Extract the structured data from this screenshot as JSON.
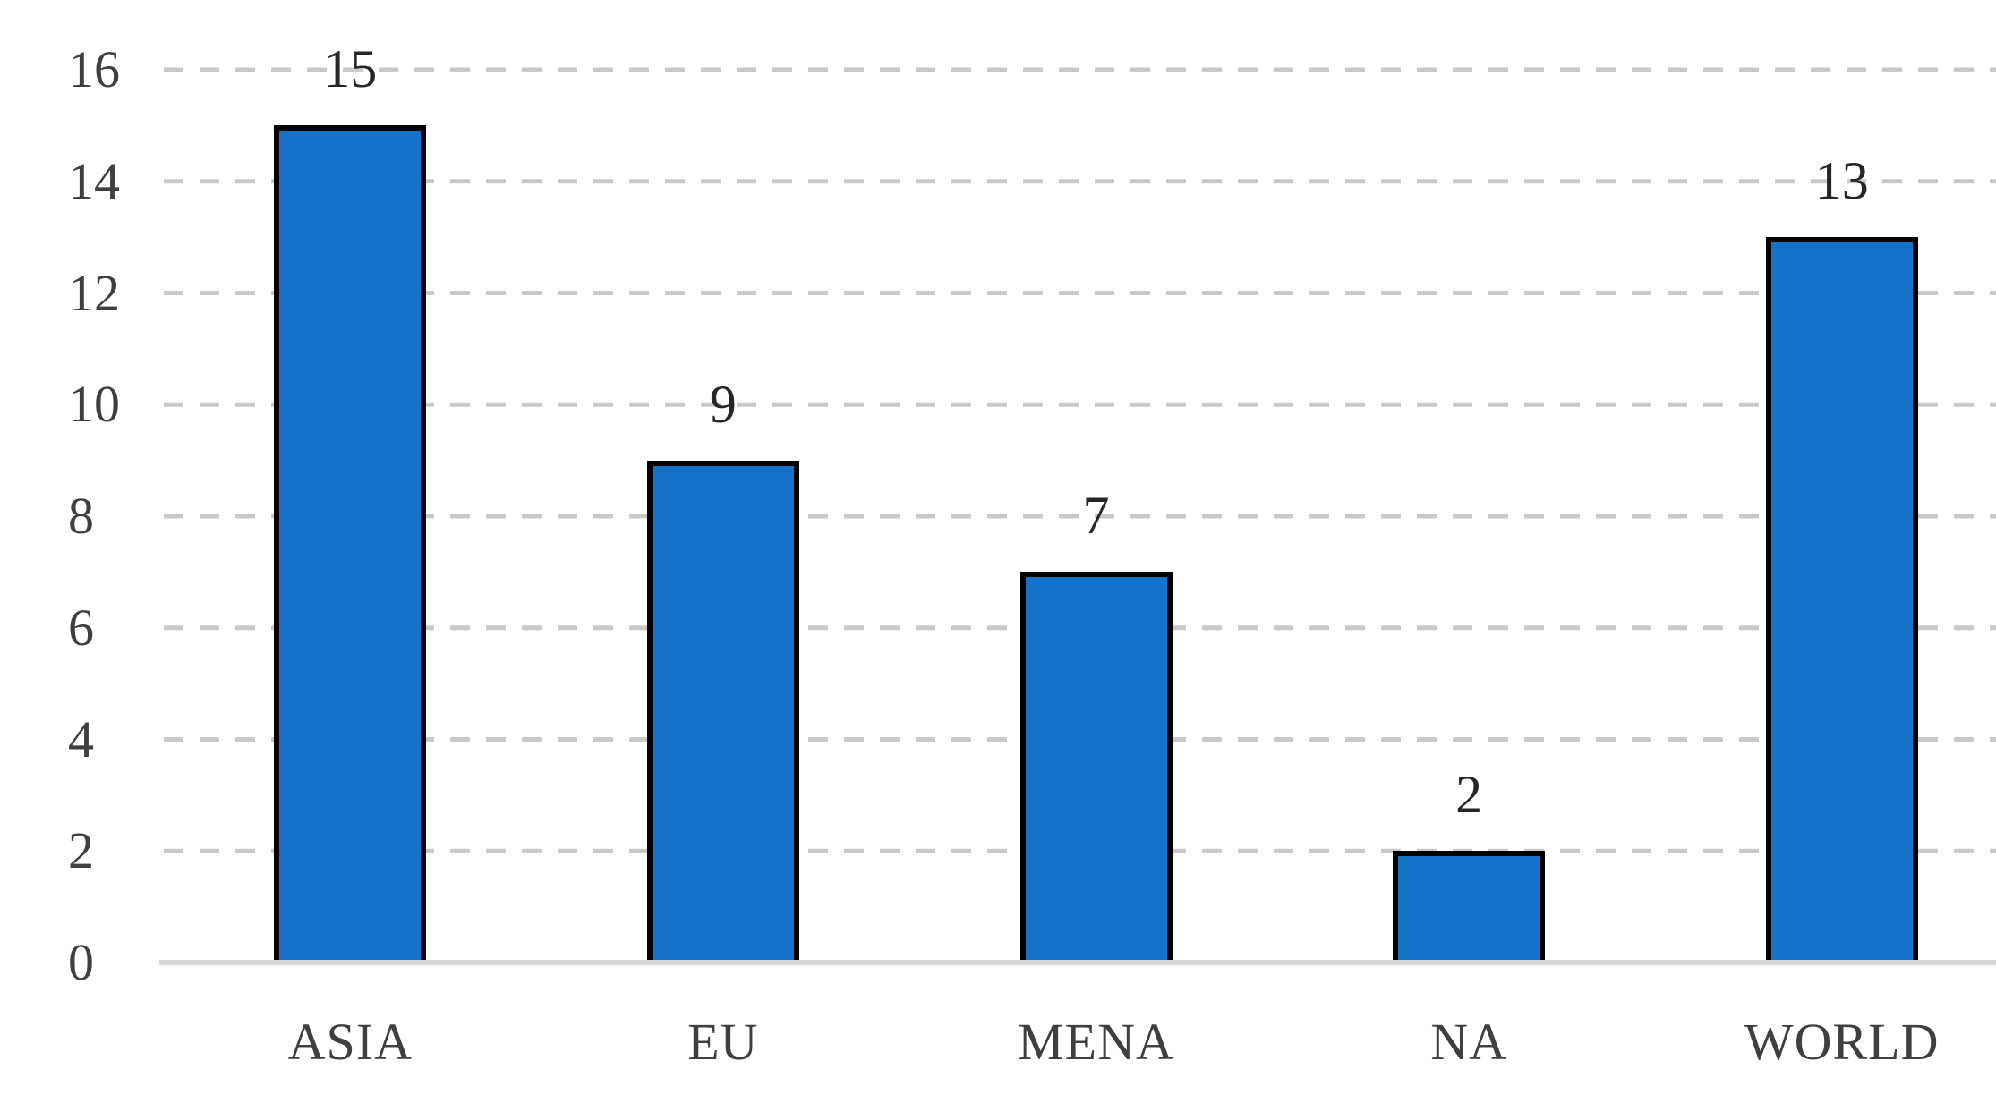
{
  "chart_data": {
    "type": "bar",
    "title": "",
    "xlabel": "",
    "ylabel": "",
    "categories": [
      "ASIA",
      "EU",
      "MENA",
      "NA",
      "WORLD"
    ],
    "values": [
      15,
      9,
      7,
      2,
      13
    ],
    "data_labels": [
      "15",
      "9",
      "7",
      "2",
      "13"
    ],
    "ylim": [
      0,
      16
    ],
    "yticks": [
      0,
      2,
      4,
      6,
      8,
      10,
      12,
      14,
      16
    ],
    "grid": "horizontal-dashed",
    "legend": "none",
    "colors": {
      "bar_fill": "#1572C8",
      "bar_border": "#000000",
      "gridline": "#C9C9C9",
      "axis_line": "#D6D6D6",
      "tick_label": "#3F3F3F",
      "category_label": "#3F3F3F",
      "data_label": "#262626",
      "background": "#FFFFFF"
    }
  }
}
